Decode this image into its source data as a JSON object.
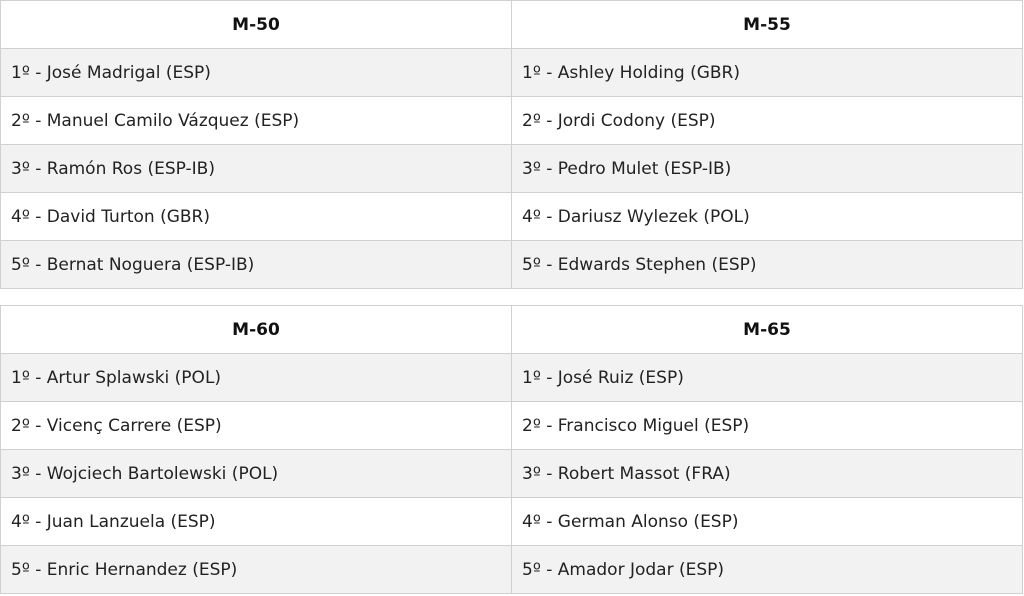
{
  "tables": [
    {
      "headers": [
        "M-50",
        "M-55"
      ],
      "rows": [
        [
          "1º - José Madrigal (ESP)",
          "1º - Ashley Holding (GBR)"
        ],
        [
          "2º - Manuel Camilo Vázquez (ESP)",
          "2º - Jordi Codony (ESP)"
        ],
        [
          "3º - Ramón Ros (ESP-IB)",
          "3º - Pedro Mulet (ESP-IB)"
        ],
        [
          "4º - David Turton (GBR)",
          "4º - Dariusz Wylezek (POL)"
        ],
        [
          "5º - Bernat Noguera (ESP-IB)",
          "5º - Edwards Stephen (ESP)"
        ]
      ]
    },
    {
      "headers": [
        "M-60",
        "M-65"
      ],
      "rows": [
        [
          "1º - Artur Splawski (POL)",
          "1º - José Ruiz (ESP)"
        ],
        [
          "2º - Vicenç Carrere (ESP)",
          "2º - Francisco Miguel (ESP)"
        ],
        [
          "3º - Wojciech Bartolewski (POL)",
          "3º - Robert Massot (FRA)"
        ],
        [
          "4º - Juan Lanzuela (ESP)",
          "4º - German Alonso (ESP)"
        ],
        [
          "5º - Enric Hernandez (ESP)",
          "5º - Amador Jodar (ESP)"
        ]
      ]
    }
  ]
}
